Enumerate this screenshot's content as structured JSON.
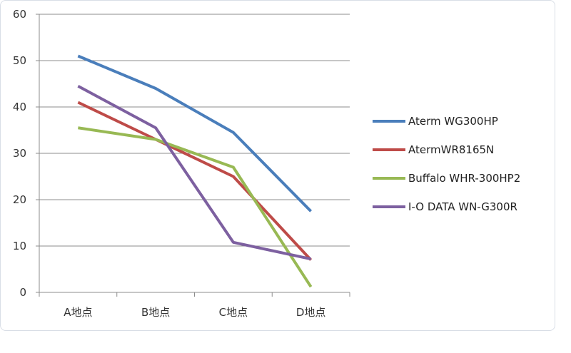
{
  "chart_data": {
    "type": "line",
    "title": "",
    "xlabel": "",
    "ylabel": "",
    "categories": [
      "A地点",
      "B地点",
      "C地点",
      "D地点"
    ],
    "ylim": [
      0,
      60
    ],
    "yticks": [
      0,
      10,
      20,
      30,
      40,
      50,
      60
    ],
    "grid": true,
    "legend_position": "right",
    "series": [
      {
        "name": "Aterm WG300HP",
        "color": "#4a7ebb",
        "values": [
          51,
          44,
          34.5,
          17.5
        ]
      },
      {
        "name": "AtermWR8165N",
        "color": "#be4b48",
        "values": [
          41,
          33,
          25,
          7
        ]
      },
      {
        "name": "Buffalo WHR-300HP2",
        "color": "#98b954",
        "values": [
          35.5,
          33,
          27,
          1.2
        ]
      },
      {
        "name": "I-O DATA WN-G300R",
        "color": "#7d60a0",
        "values": [
          44.5,
          35.5,
          10.8,
          7.2
        ]
      }
    ]
  }
}
